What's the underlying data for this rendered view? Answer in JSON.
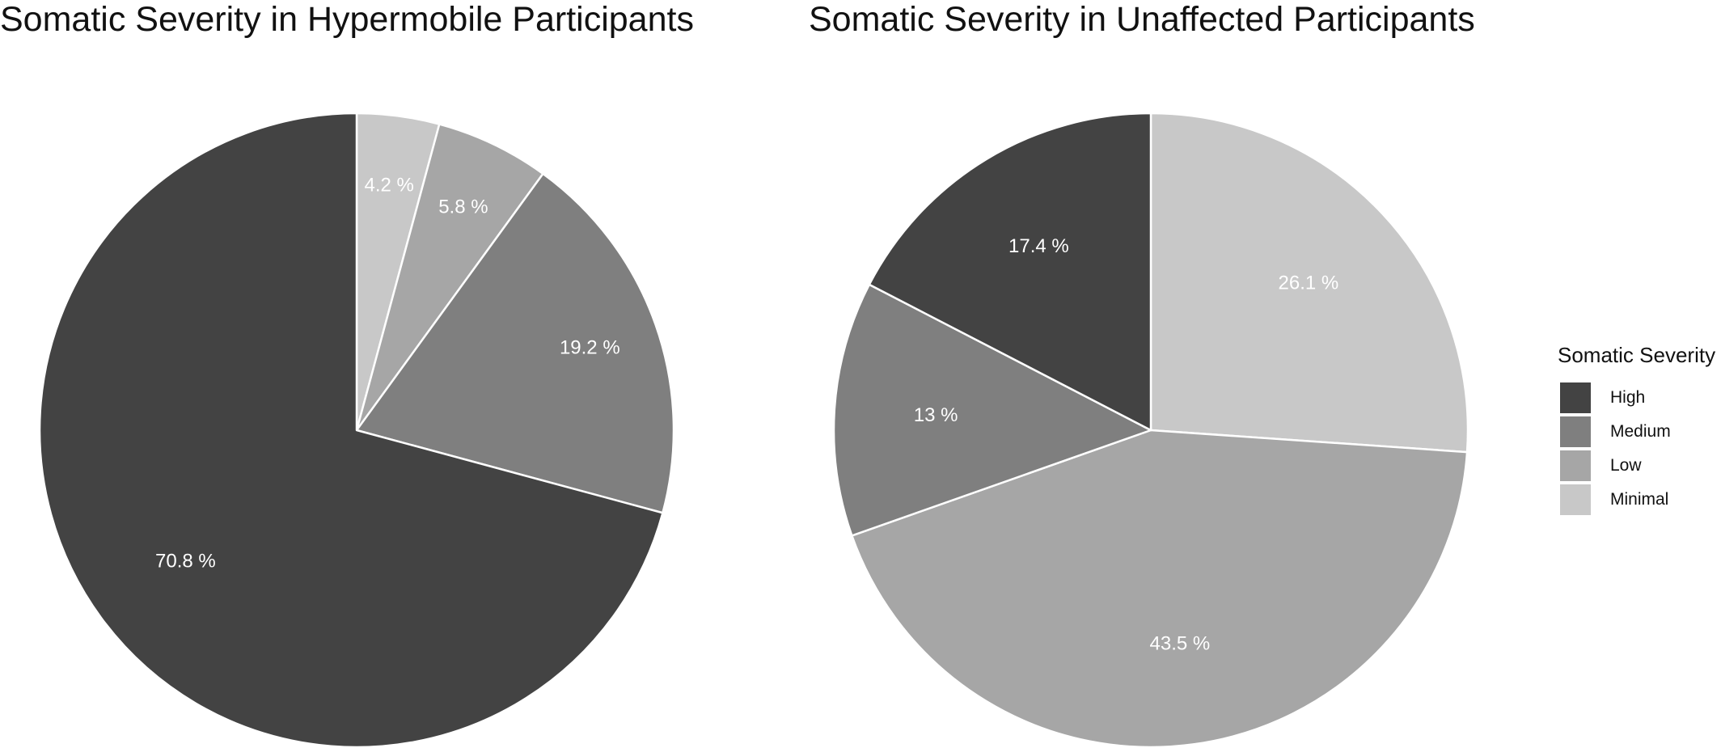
{
  "chart_data": [
    {
      "type": "pie",
      "title": "Somatic Severity in Hypermobile Participants",
      "slices": [
        {
          "category": "Minimal",
          "value": 4.2,
          "label": "4.2 %"
        },
        {
          "category": "Low",
          "value": 5.8,
          "label": "5.8 %"
        },
        {
          "category": "Medium",
          "value": 19.2,
          "label": "19.2 %"
        },
        {
          "category": "High",
          "value": 70.8,
          "label": "70.8 %"
        }
      ]
    },
    {
      "type": "pie",
      "title": "Somatic Severity in Unaffected Participants",
      "slices": [
        {
          "category": "Minimal",
          "value": 26.1,
          "label": "26.1 %"
        },
        {
          "category": "Low",
          "value": 43.5,
          "label": "43.5 %"
        },
        {
          "category": "Medium",
          "value": 13,
          "label": "13 %"
        },
        {
          "category": "High",
          "value": 17.4,
          "label": "17.4 %"
        }
      ]
    }
  ],
  "legend": {
    "title": "Somatic Severity",
    "items": [
      {
        "label": "High",
        "color": "#434343"
      },
      {
        "label": "Medium",
        "color": "#7f7f7f"
      },
      {
        "label": "Low",
        "color": "#a6a6a6"
      },
      {
        "label": "Minimal",
        "color": "#c8c8c8"
      }
    ]
  },
  "colors": {
    "High": "#434343",
    "Medium": "#7f7f7f",
    "Low": "#a6a6a6",
    "Minimal": "#c8c8c8",
    "separator": "#ffffff",
    "label_text": "#ffffff"
  }
}
